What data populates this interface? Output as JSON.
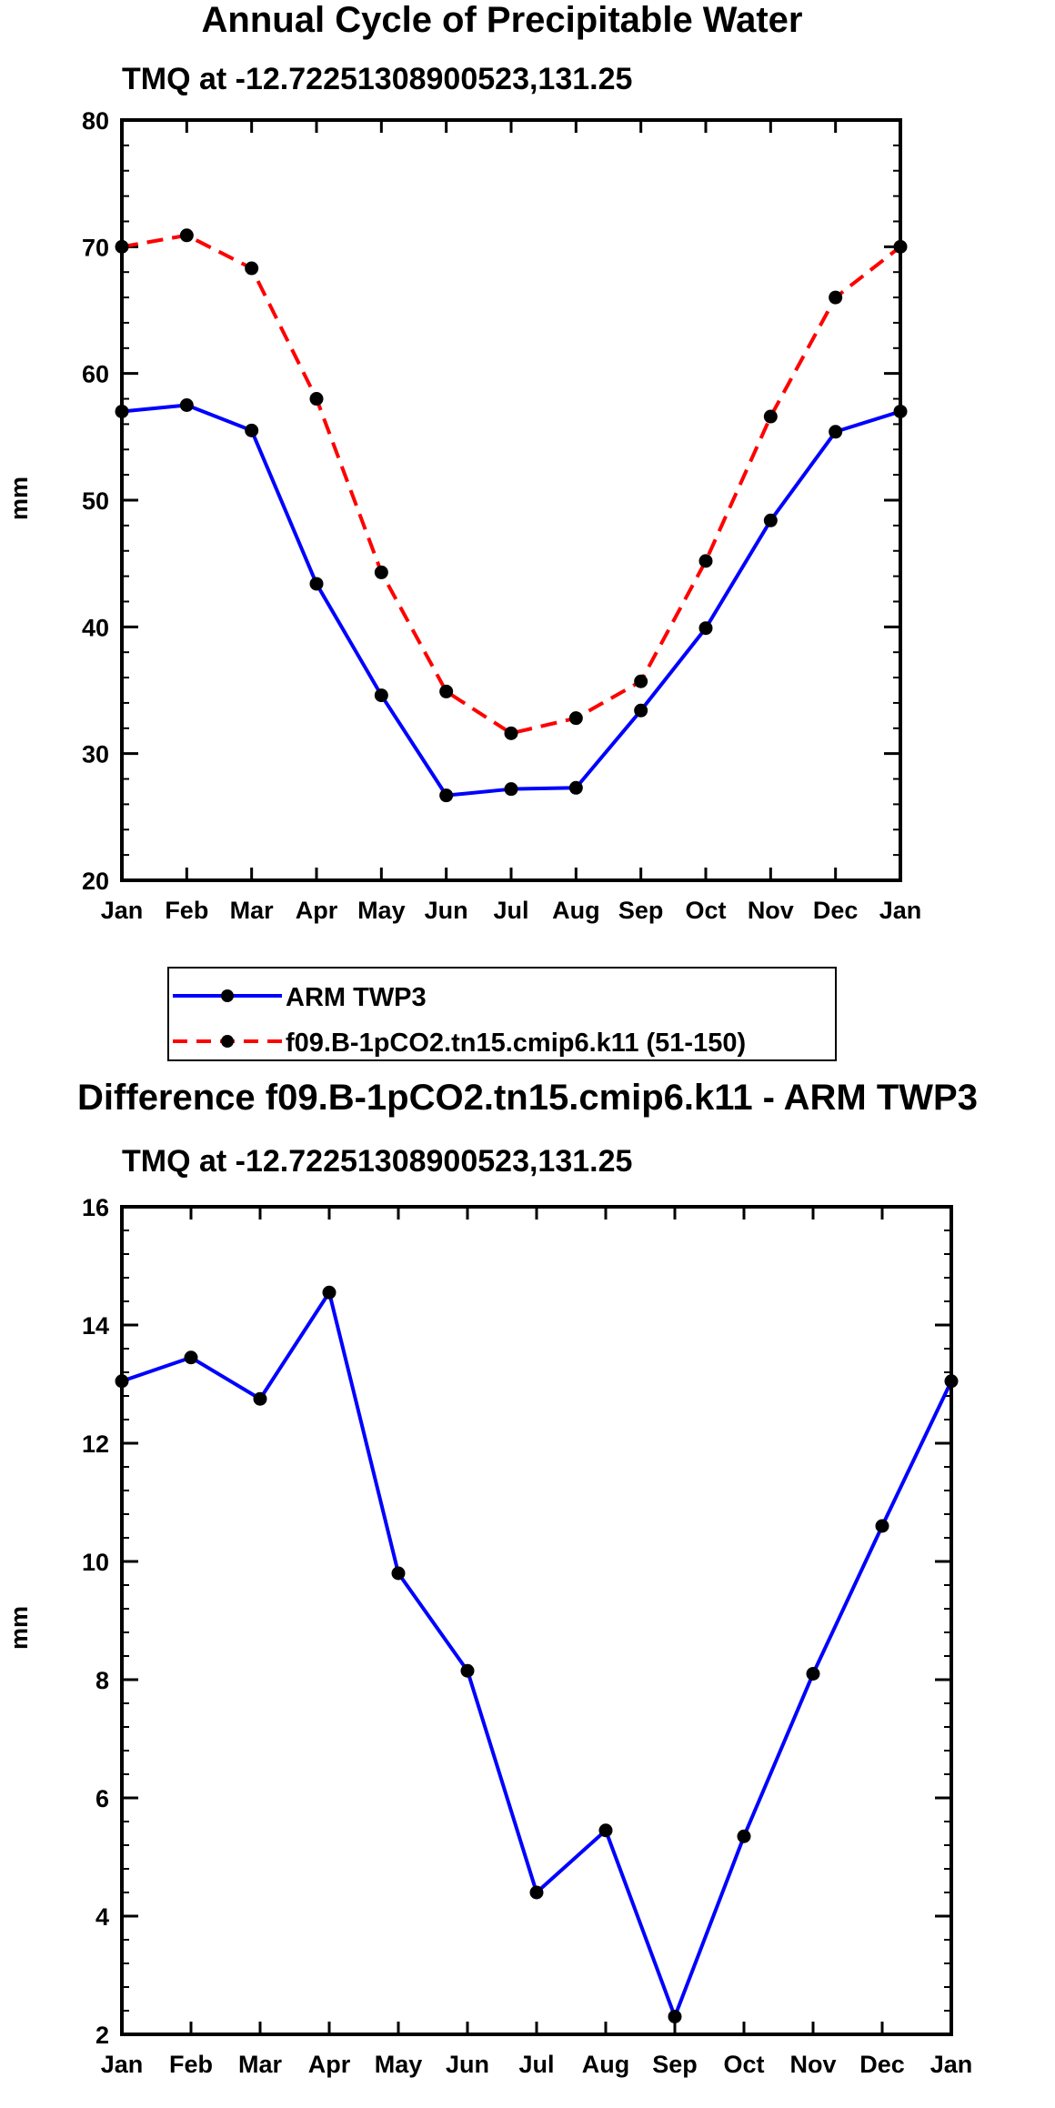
{
  "chart_data": [
    {
      "type": "line",
      "title": "Annual Cycle of Precipitable Water",
      "subtitle": "TMQ at -12.72251308900523,131.25",
      "xlabel": "",
      "ylabel": "mm",
      "categories": [
        "Jan",
        "Feb",
        "Mar",
        "Apr",
        "May",
        "Jun",
        "Jul",
        "Aug",
        "Sep",
        "Oct",
        "Nov",
        "Dec",
        "Jan"
      ],
      "ylim": [
        20,
        80
      ],
      "yticks": [
        20,
        30,
        40,
        50,
        60,
        70,
        80
      ],
      "legend_position": "below",
      "series": [
        {
          "name": "ARM TWP3",
          "color": "#0000ff",
          "dashed": false,
          "values": [
            57.0,
            57.5,
            55.5,
            43.4,
            34.6,
            26.7,
            27.2,
            27.3,
            33.4,
            39.9,
            48.4,
            55.4,
            57.0
          ]
        },
        {
          "name": "f09.B-1pCO2.tn15.cmip6.k11 (51-150)",
          "color": "#ff0000",
          "dashed": true,
          "values": [
            70.0,
            70.9,
            68.3,
            58.0,
            44.3,
            34.9,
            31.6,
            32.8,
            35.7,
            45.2,
            56.6,
            66.0,
            70.0
          ]
        }
      ]
    },
    {
      "type": "line",
      "title": "Difference f09.B-1pCO2.tn15.cmip6.k11 - ARM TWP3",
      "subtitle": "TMQ at -12.72251308900523,131.25",
      "xlabel": "",
      "ylabel": "mm",
      "categories": [
        "Jan",
        "Feb",
        "Mar",
        "Apr",
        "May",
        "Jun",
        "Jul",
        "Aug",
        "Sep",
        "Oct",
        "Nov",
        "Dec",
        "Jan"
      ],
      "ylim": [
        2,
        16
      ],
      "yticks": [
        2,
        4,
        6,
        8,
        10,
        12,
        14,
        16
      ],
      "series": [
        {
          "name": "Difference",
          "color": "#0000ff",
          "dashed": false,
          "values": [
            13.05,
            13.45,
            12.75,
            14.55,
            9.8,
            8.15,
            4.4,
            5.45,
            2.3,
            5.35,
            8.1,
            10.6,
            13.05
          ]
        }
      ]
    }
  ]
}
